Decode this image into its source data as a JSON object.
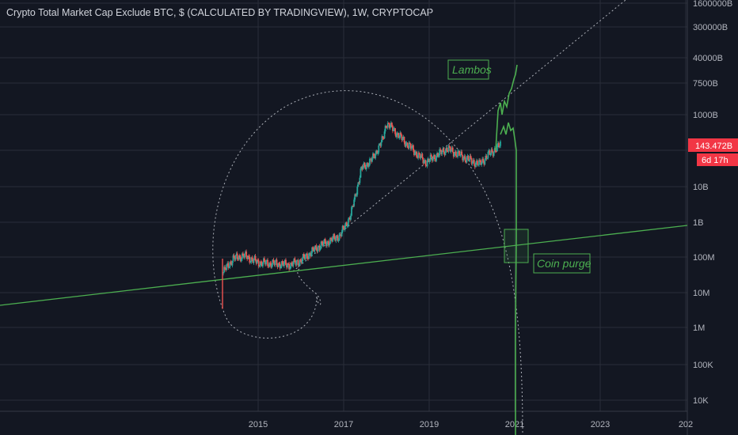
{
  "title": "Crypto Total Market Cap Exclude BTC, $ (CALCULATED BY TRADINGVIEW), 1W, CRYPTOCAP",
  "colors": {
    "background": "#131722",
    "grid": "#2a2e39",
    "up": "#26a69a",
    "down": "#ef5350",
    "annotation": "#4caf50",
    "price_badge": "#f23645",
    "dotted": "#d1d4dc"
  },
  "chart_data": {
    "type": "candlestick",
    "y_scale": "log",
    "x_ticks": [
      "2015",
      "2017",
      "2019",
      "2021",
      "2023",
      "202"
    ],
    "y_ticks": [
      "1600000B",
      "300000B",
      "40000B",
      "7500B",
      "1000B",
      "10B",
      "1B",
      "100M",
      "10M",
      "1M",
      "100K",
      "10K"
    ],
    "last_value_label": "143.472B",
    "countdown_label": "6d 17h",
    "series": [
      {
        "points": [
          [
            "2014-03",
            35000000.0
          ],
          [
            "2014-06",
            90000000.0
          ],
          [
            "2014-09",
            110000000.0
          ],
          [
            "2015-01",
            70000000.0
          ],
          [
            "2015-06",
            65000000.0
          ],
          [
            "2015-10",
            60000000.0
          ],
          [
            "2016-01",
            80000000.0
          ],
          [
            "2016-06",
            200000000.0
          ],
          [
            "2016-12",
            400000000.0
          ],
          [
            "2017-03",
            1500000000.0
          ],
          [
            "2017-06",
            30000000000.0
          ],
          [
            "2017-09",
            55000000000.0
          ],
          [
            "2017-12",
            200000000000.0
          ],
          [
            "2018-01",
            600000000000.0
          ],
          [
            "2018-06",
            180000000000.0
          ],
          [
            "2018-12",
            45000000000.0
          ],
          [
            "2019-06",
            110000000000.0
          ],
          [
            "2019-12",
            55000000000.0
          ],
          [
            "2020-03",
            40000000000.0
          ],
          [
            "2020-06",
            80000000000.0
          ],
          [
            "2020-09",
            140000000000.0
          ]
        ]
      }
    ],
    "annotations": [
      {
        "label": "Lambos"
      },
      {
        "label": "Coin purge"
      }
    ]
  }
}
